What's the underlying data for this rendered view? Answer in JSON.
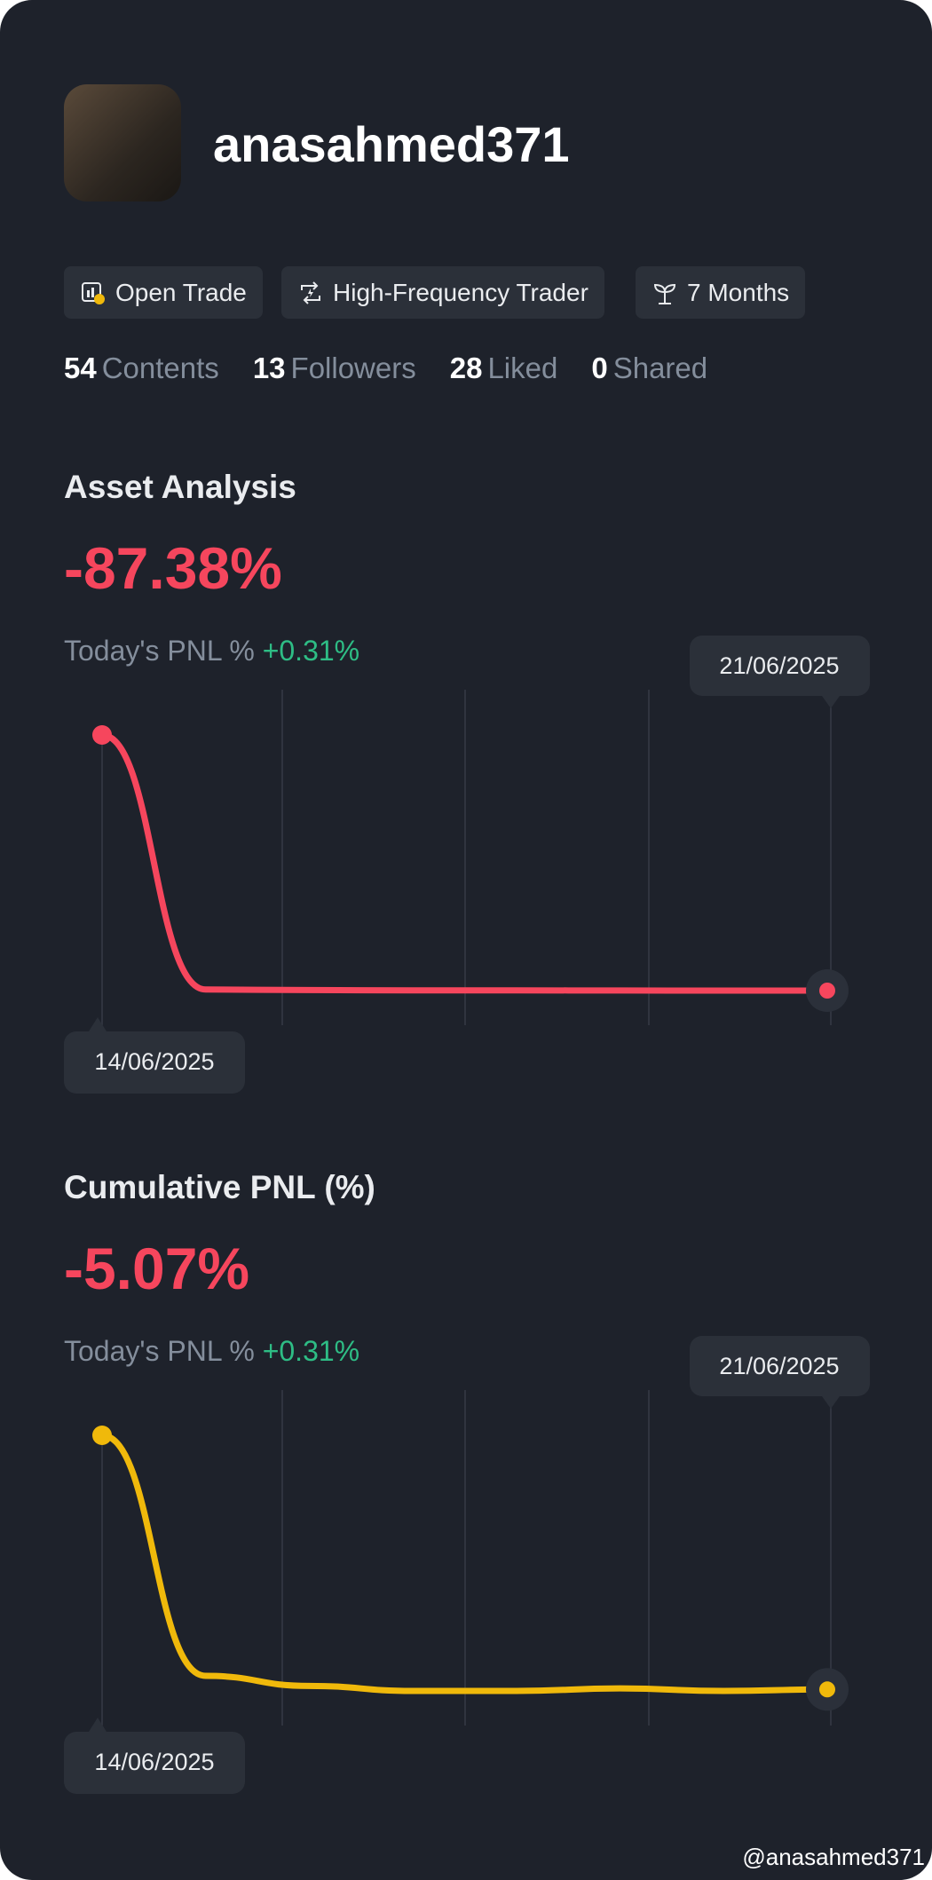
{
  "profile": {
    "username": "anasahmed371",
    "tags": [
      "Open Trade",
      "High-Frequency Trader",
      "7 Months"
    ],
    "stats": [
      {
        "value": 54,
        "label": "Contents"
      },
      {
        "value": 13,
        "label": "Followers"
      },
      {
        "value": 28,
        "label": "Liked"
      },
      {
        "value": 0,
        "label": "Shared"
      }
    ]
  },
  "charts": [
    {
      "type": "line",
      "title": "Asset Analysis",
      "headline": "-87.38%",
      "pnl_label": "Today's PNL %",
      "pnl_value": "+0.31%",
      "start_date": "14/06/2025",
      "end_date": "21/06/2025",
      "color": "#f6465d",
      "values": [
        0,
        -87.0,
        -87.2,
        -87.3,
        -87.3,
        -87.35,
        -87.38,
        -87.38
      ]
    },
    {
      "type": "line",
      "title": "Cumulative PNL (%)",
      "headline": "-5.07%",
      "pnl_label": "Today's PNL %",
      "pnl_value": "+0.31%",
      "start_date": "14/06/2025",
      "end_date": "21/06/2025",
      "color": "#f0b90b",
      "values": [
        0,
        -4.8,
        -5.0,
        -5.1,
        -5.1,
        -5.05,
        -5.1,
        -5.07
      ]
    }
  ],
  "watermark": "@anasahmed371"
}
